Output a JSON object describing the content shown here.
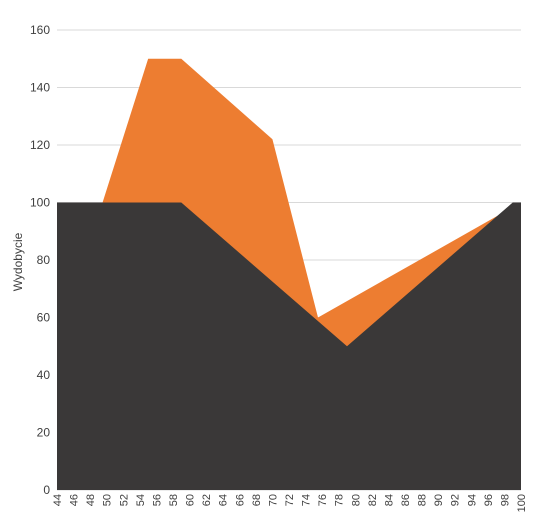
{
  "chart_data": {
    "type": "area",
    "ylabel": "Wydobycie",
    "xlabel": "",
    "ylim": [
      0,
      160
    ],
    "y_ticks": [
      0,
      20,
      40,
      60,
      80,
      100,
      120,
      140,
      160
    ],
    "x_ticks": [
      "44",
      "46",
      "48",
      "50",
      "52",
      "54",
      "56",
      "58",
      "60",
      "62",
      "64",
      "66",
      "68",
      "70",
      "72",
      "74",
      "76",
      "78",
      "80",
      "82",
      "84",
      "86",
      "88",
      "90",
      "92",
      "94",
      "96",
      "98",
      "100"
    ],
    "xlim": [
      44,
      100
    ],
    "grid": true,
    "legend": "none",
    "series": [
      {
        "color": "#ed7d31",
        "points": [
          [
            44,
            100
          ],
          [
            49.5,
            100
          ],
          [
            55,
            150
          ],
          [
            59,
            150
          ],
          [
            70,
            122
          ],
          [
            75.5,
            60
          ],
          [
            100,
            100
          ]
        ]
      },
      {
        "color": "#3a3838",
        "points": [
          [
            44,
            100
          ],
          [
            59,
            100
          ],
          [
            79,
            50
          ],
          [
            99,
            100
          ],
          [
            100,
            100
          ]
        ]
      }
    ]
  }
}
